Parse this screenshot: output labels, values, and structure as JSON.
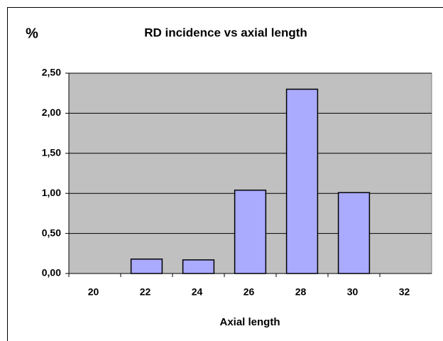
{
  "chart_data": {
    "type": "bar",
    "title": "RD incidence vs axial length",
    "y_label": "%",
    "x_label": "Axial length",
    "categories": [
      "20",
      "22",
      "24",
      "26",
      "28",
      "30",
      "32"
    ],
    "values": [
      0,
      0.18,
      0.17,
      1.04,
      2.3,
      1.01,
      0
    ],
    "color": "#aaaaff",
    "ylim": [
      0,
      2.5
    ],
    "yticks": [
      {
        "value": 0,
        "label": "0,00"
      },
      {
        "value": 0.5,
        "label": "0,50"
      },
      {
        "value": 1,
        "label": "1,00"
      },
      {
        "value": 1.5,
        "label": "1,50"
      },
      {
        "value": 2,
        "label": "2,00"
      },
      {
        "value": 2.5,
        "label": "2,50"
      }
    ],
    "grid": true
  }
}
